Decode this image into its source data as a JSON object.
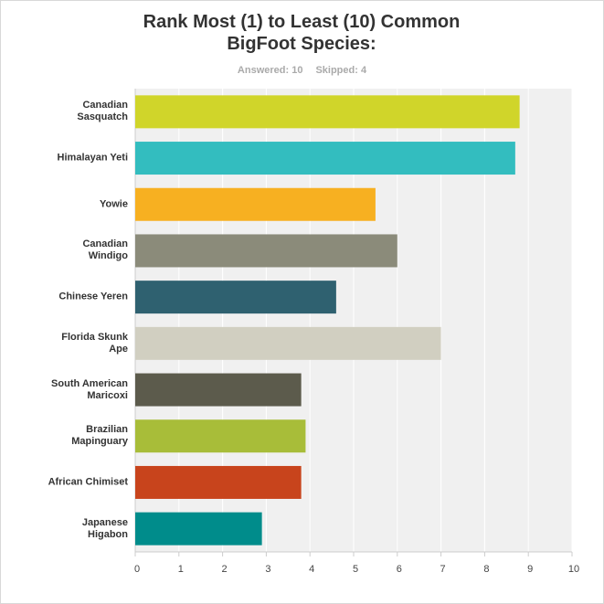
{
  "chart_data": {
    "type": "bar",
    "orientation": "horizontal",
    "title": "Rank Most (1)  to Least (10) Common BigFoot Species:",
    "answered": "Answered: 10",
    "skipped": "Skipped: 4",
    "categories": [
      "Canadian Sasquatch",
      "Himalayan Yeti",
      "Yowie",
      "Canadian Windigo",
      "Chinese Yeren",
      "Florida Skunk Ape",
      "South American Maricoxi",
      "Brazilian Mapinguary",
      "African Chimiset",
      "Japanese Higabon"
    ],
    "values": [
      8.8,
      8.7,
      5.5,
      6.0,
      4.6,
      7.0,
      3.8,
      3.9,
      3.8,
      2.9
    ],
    "colors": [
      "#d0d52a",
      "#33bdbf",
      "#f7b021",
      "#8b8b7a",
      "#2f6170",
      "#d1cfc1",
      "#5c5b4c",
      "#a8bd39",
      "#c8441c",
      "#008c8b"
    ],
    "xlim": [
      0,
      10
    ],
    "xticks": [
      0,
      1,
      2,
      3,
      4,
      5,
      6,
      7,
      8,
      9,
      10
    ],
    "grid": true
  }
}
